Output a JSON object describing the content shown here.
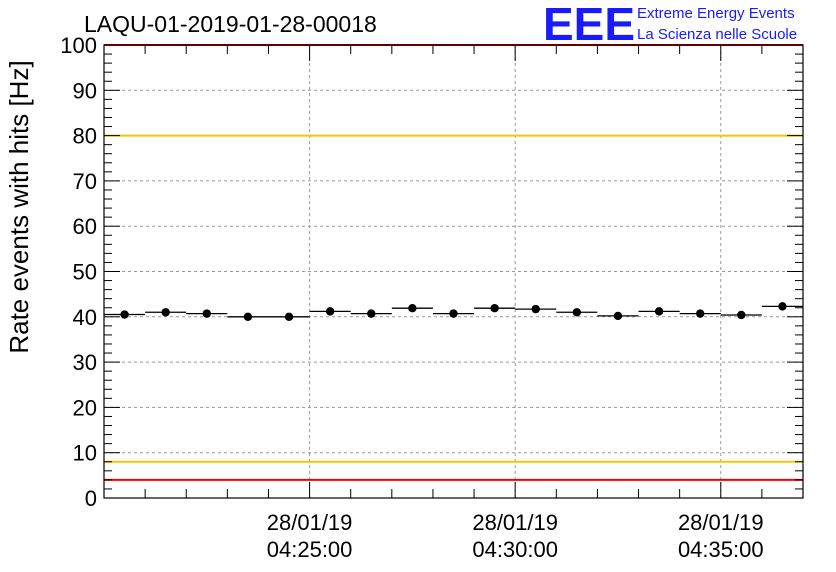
{
  "chart_data": {
    "type": "scatter",
    "title": "LAQU-01-2019-01-28-00018",
    "xlabel": "",
    "ylabel": "Rate events with hits [Hz]",
    "ylim": [
      0,
      100
    ],
    "xlim_min": [
      0,
      17
    ],
    "y_ticks": [
      0,
      10,
      20,
      30,
      40,
      50,
      60,
      70,
      80,
      90,
      100
    ],
    "x_ticks": [
      {
        "min": 5,
        "date": "28/01/19",
        "time": "04:25:00"
      },
      {
        "min": 10,
        "date": "28/01/19",
        "time": "04:30:00"
      },
      {
        "min": 15,
        "date": "28/01/19",
        "time": "04:35:00"
      }
    ],
    "bin_width_min": 1,
    "points": [
      {
        "x": 0.5,
        "y": 40.5
      },
      {
        "x": 1.5,
        "y": 41.0
      },
      {
        "x": 2.5,
        "y": 40.7
      },
      {
        "x": 3.5,
        "y": 40.0
      },
      {
        "x": 4.5,
        "y": 40.0
      },
      {
        "x": 5.5,
        "y": 41.2
      },
      {
        "x": 6.5,
        "y": 40.7
      },
      {
        "x": 7.5,
        "y": 41.9
      },
      {
        "x": 8.5,
        "y": 40.7
      },
      {
        "x": 9.5,
        "y": 41.9
      },
      {
        "x": 10.5,
        "y": 41.7
      },
      {
        "x": 11.5,
        "y": 41.0
      },
      {
        "x": 12.5,
        "y": 40.2
      },
      {
        "x": 13.5,
        "y": 41.2
      },
      {
        "x": 14.5,
        "y": 40.7
      },
      {
        "x": 15.5,
        "y": 40.4
      },
      {
        "x": 16.5,
        "y": 42.3
      }
    ],
    "reference_lines": [
      {
        "name": "upper-red-line",
        "y": 100,
        "color": "#ff0000"
      },
      {
        "name": "upper-yellow-line",
        "y": 80,
        "color": "#f0c800"
      },
      {
        "name": "lower-yellow-line",
        "y": 8,
        "color": "#f0c800"
      },
      {
        "name": "lower-red-line",
        "y": 4,
        "color": "#ff0000"
      }
    ],
    "grid": true
  },
  "logo": {
    "letters": "EEE",
    "line1": "Extreme Energy Events",
    "line2": "La Scienza nelle Scuole",
    "color": "#1a1aff"
  }
}
